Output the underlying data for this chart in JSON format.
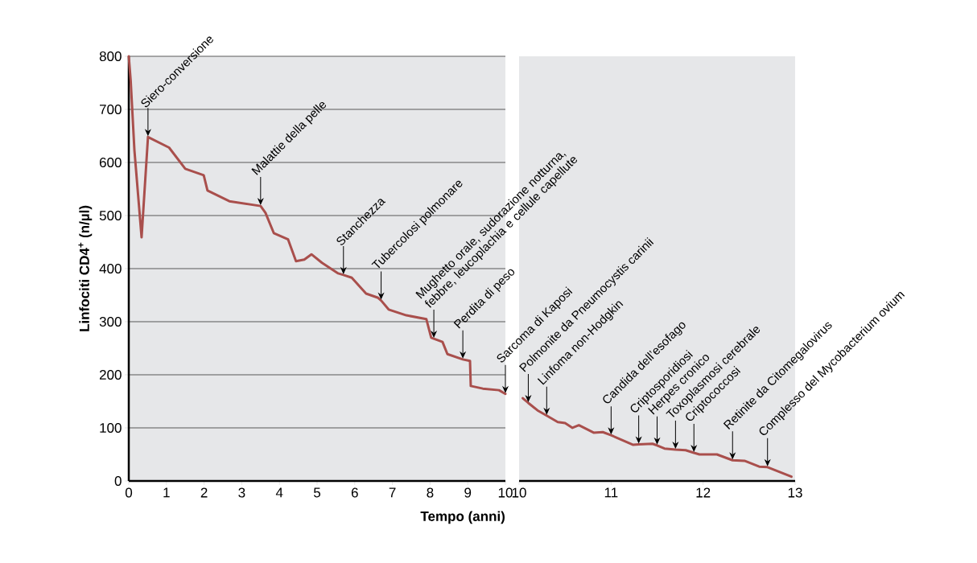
{
  "chart_data": [
    {
      "type": "line",
      "xlabel": "Tempo (anni)",
      "ylabel": "Linfociti CD4$^{+}$ (n/µl)",
      "color": "#a94f4c",
      "grid": "y",
      "x": [
        0,
        0.05,
        0.15,
        0.34,
        0.51,
        1.07,
        1.5,
        1.99,
        2.09,
        2.67,
        3.5,
        3.63,
        3.85,
        4.23,
        4.44,
        4.66,
        4.85,
        5.13,
        5.56,
        5.7,
        5.92,
        6.3,
        6.62,
        6.7,
        6.9,
        7.37,
        7.9,
        8.03,
        8.1,
        8.33,
        8.46,
        8.87,
        9.06,
        9.08,
        9.4,
        9.83,
        10
      ],
      "values": [
        800,
        755,
        623,
        459,
        648,
        628,
        588,
        576,
        547,
        527,
        518,
        505,
        467,
        455,
        414,
        417,
        427,
        411,
        391,
        388,
        383,
        353,
        345,
        340,
        323,
        312,
        305,
        270,
        268,
        262,
        239,
        229,
        226,
        179,
        174,
        171,
        164
      ],
      "xlim": [
        0,
        10
      ],
      "xticks": [
        0,
        1,
        2,
        3,
        4,
        5,
        6,
        7,
        8,
        9,
        10
      ],
      "ylim": [
        0,
        800
      ],
      "yticks": [
        0,
        100,
        200,
        300,
        400,
        500,
        600,
        700,
        800
      ],
      "annotations": [
        {
          "text": "Siero-conversione",
          "x": 0.51,
          "y": 648
        },
        {
          "text": "Malattie della pelle",
          "x": 3.5,
          "y": 518
        },
        {
          "text": "Stanchezza",
          "x": 5.7,
          "y": 388
        },
        {
          "text": "Tubercolosi polmonare",
          "x": 6.7,
          "y": 340
        },
        {
          "text": "Mughetto orale, sudorazione notturna, febbre, leucoplachia e cellule capellute",
          "x": 8.1,
          "y": 268
        },
        {
          "text": "Perdita di peso",
          "x": 8.87,
          "y": 229
        },
        {
          "text": "Sarcoma di Kaposi",
          "x": 10,
          "y": 164
        }
      ]
    },
    {
      "type": "line",
      "color": "#a94f4c",
      "grid": "y",
      "tick_labels": "x",
      "x": [
        10.04,
        10.1,
        10.2,
        10.3,
        10.42,
        10.5,
        10.58,
        10.65,
        10.81,
        10.91,
        11.0,
        11.24,
        11.3,
        11.45,
        11.5,
        11.58,
        11.7,
        11.81,
        11.9,
        11.96,
        12.15,
        12.32,
        12.45,
        12.61,
        12.7,
        12.96
      ],
      "values": [
        156,
        147,
        133,
        123,
        111,
        109,
        100,
        105,
        91,
        92,
        86,
        68,
        69,
        70,
        67,
        61,
        59,
        58,
        53,
        50,
        50,
        39,
        38,
        27,
        26,
        8
      ],
      "xlim": [
        10,
        13
      ],
      "xticks": [
        10,
        11,
        12,
        13
      ],
      "ylim": [
        0,
        800
      ],
      "yticks": [
        0,
        100,
        200,
        300,
        400,
        500,
        600,
        700,
        800
      ],
      "annotations": [
        {
          "text": "Polmonite da Pneumocystis carinii",
          "x": 10.1,
          "y": 147
        },
        {
          "text": "Linfoma non-Hodgkin",
          "x": 10.3,
          "y": 123
        },
        {
          "text": "Candida dell’esofago",
          "x": 11.0,
          "y": 86
        },
        {
          "text": "Criptosporidiosi",
          "x": 11.3,
          "y": 69
        },
        {
          "text": "Herpes cronico",
          "x": 11.5,
          "y": 67
        },
        {
          "text": "Toxoplasmosi cerebrale",
          "x": 11.7,
          "y": 59
        },
        {
          "text": "Criptococcosi",
          "x": 11.9,
          "y": 53
        },
        {
          "text": "Retinite da Citomegalovirus",
          "x": 12.32,
          "y": 39
        },
        {
          "text": "Complesso del Mycobacterium ovium",
          "x": 12.7,
          "y": 26
        }
      ]
    }
  ]
}
